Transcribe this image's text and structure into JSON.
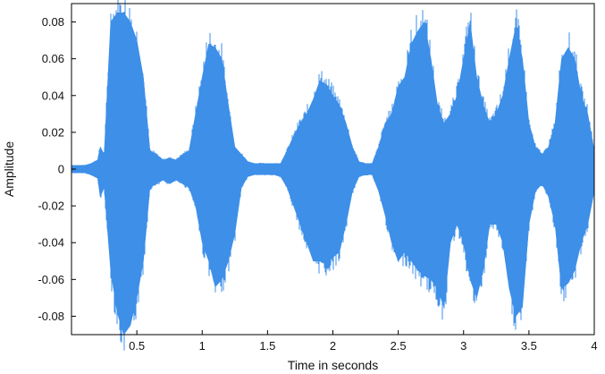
{
  "chart_data": {
    "type": "area",
    "xlabel": "Time in seconds",
    "ylabel": "Amplitude",
    "xlim": [
      0,
      4
    ],
    "ylim": [
      -0.09,
      0.09
    ],
    "x_ticks": [
      0.5,
      1,
      1.5,
      2,
      2.5,
      3,
      3.5,
      4
    ],
    "x_tick_labels": [
      "0.5",
      "1",
      "1.5",
      "2",
      "2.5",
      "3",
      "3.5",
      "4"
    ],
    "y_ticks": [
      -0.08,
      -0.06,
      -0.04,
      -0.02,
      0,
      0.02,
      0.04,
      0.06,
      0.08
    ],
    "y_tick_labels": [
      "-0.08",
      "-0.06",
      "-0.04",
      "-0.02",
      "0",
      "0.02",
      "0.04",
      "0.06",
      "0.08"
    ],
    "grid": false,
    "color": "#3d8fe8",
    "series": [
      {
        "x": [
          0.0,
          0.05,
          0.1,
          0.15,
          0.2,
          0.22,
          0.25,
          0.3,
          0.35,
          0.4,
          0.45,
          0.5,
          0.55,
          0.6,
          0.65,
          0.7,
          0.75,
          0.8,
          0.85,
          0.9,
          0.95,
          1.0,
          1.05,
          1.1,
          1.15,
          1.2,
          1.25,
          1.3,
          1.35,
          1.4,
          1.45,
          1.5,
          1.55,
          1.6,
          1.65,
          1.7,
          1.75,
          1.8,
          1.85,
          1.9,
          1.95,
          2.0,
          2.05,
          2.1,
          2.15,
          2.2,
          2.25,
          2.3,
          2.35,
          2.4,
          2.45,
          2.5,
          2.55,
          2.6,
          2.65,
          2.7,
          2.75,
          2.8,
          2.85,
          2.9,
          2.95,
          3.0,
          3.05,
          3.1,
          3.15,
          3.2,
          3.25,
          3.3,
          3.35,
          3.4,
          3.45,
          3.5,
          3.55,
          3.6,
          3.65,
          3.7,
          3.75,
          3.8,
          3.85,
          3.9,
          3.95,
          4.0
        ],
        "upper": [
          0.002,
          0.002,
          0.002,
          0.003,
          0.005,
          0.012,
          0.008,
          0.08,
          0.085,
          0.085,
          0.08,
          0.07,
          0.05,
          0.01,
          0.008,
          0.005,
          0.006,
          0.005,
          0.008,
          0.01,
          0.03,
          0.05,
          0.068,
          0.066,
          0.06,
          0.035,
          0.012,
          0.008,
          0.004,
          0.003,
          0.003,
          0.003,
          0.003,
          0.003,
          0.01,
          0.018,
          0.025,
          0.03,
          0.038,
          0.048,
          0.046,
          0.04,
          0.035,
          0.025,
          0.012,
          0.004,
          0.003,
          0.003,
          0.012,
          0.025,
          0.03,
          0.045,
          0.05,
          0.068,
          0.075,
          0.08,
          0.06,
          0.035,
          0.025,
          0.03,
          0.04,
          0.06,
          0.08,
          0.05,
          0.035,
          0.025,
          0.03,
          0.04,
          0.06,
          0.078,
          0.06,
          0.025,
          0.012,
          0.008,
          0.012,
          0.025,
          0.06,
          0.066,
          0.06,
          0.04,
          0.03,
          0.01
        ],
        "lower": [
          -0.002,
          -0.002,
          -0.002,
          -0.003,
          -0.005,
          -0.015,
          -0.01,
          -0.055,
          -0.078,
          -0.09,
          -0.085,
          -0.07,
          -0.05,
          -0.01,
          -0.008,
          -0.006,
          -0.008,
          -0.006,
          -0.008,
          -0.01,
          -0.02,
          -0.04,
          -0.05,
          -0.064,
          -0.06,
          -0.05,
          -0.035,
          -0.01,
          -0.004,
          -0.003,
          -0.003,
          -0.003,
          -0.003,
          -0.004,
          -0.01,
          -0.02,
          -0.03,
          -0.04,
          -0.05,
          -0.05,
          -0.052,
          -0.048,
          -0.045,
          -0.03,
          -0.012,
          -0.004,
          -0.003,
          -0.003,
          -0.012,
          -0.025,
          -0.04,
          -0.05,
          -0.045,
          -0.05,
          -0.055,
          -0.058,
          -0.06,
          -0.065,
          -0.075,
          -0.04,
          -0.03,
          -0.04,
          -0.06,
          -0.07,
          -0.055,
          -0.03,
          -0.03,
          -0.04,
          -0.065,
          -0.08,
          -0.075,
          -0.03,
          -0.012,
          -0.008,
          -0.015,
          -0.03,
          -0.065,
          -0.062,
          -0.055,
          -0.04,
          -0.03,
          -0.012
        ]
      }
    ]
  }
}
